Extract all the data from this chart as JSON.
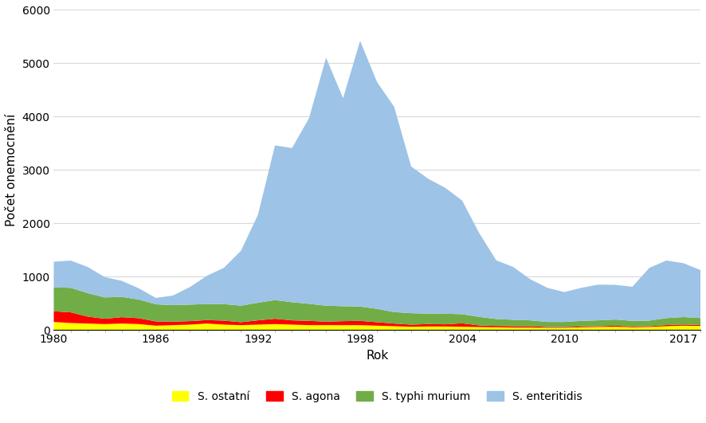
{
  "years": [
    1980,
    1981,
    1982,
    1983,
    1984,
    1985,
    1986,
    1987,
    1988,
    1989,
    1990,
    1991,
    1992,
    1993,
    1994,
    1995,
    1996,
    1997,
    1998,
    1999,
    2000,
    2001,
    2002,
    2003,
    2004,
    2005,
    2006,
    2007,
    2008,
    2009,
    2010,
    2011,
    2012,
    2013,
    2014,
    2015,
    2016,
    2017,
    2018
  ],
  "s_ostatni": [
    150,
    130,
    120,
    110,
    120,
    110,
    80,
    90,
    100,
    120,
    100,
    90,
    100,
    110,
    100,
    90,
    90,
    90,
    90,
    80,
    70,
    60,
    65,
    65,
    60,
    55,
    50,
    45,
    45,
    40,
    40,
    50,
    55,
    60,
    50,
    55,
    70,
    80,
    75
  ],
  "s_agona": [
    200,
    200,
    130,
    100,
    120,
    110,
    80,
    65,
    65,
    65,
    75,
    55,
    80,
    100,
    80,
    80,
    65,
    75,
    80,
    65,
    50,
    40,
    45,
    40,
    65,
    30,
    25,
    25,
    25,
    15,
    15,
    15,
    15,
    20,
    15,
    15,
    22,
    22,
    18
  ],
  "s_typhi_murium": [
    450,
    460,
    440,
    400,
    380,
    350,
    320,
    310,
    310,
    300,
    310,
    310,
    330,
    350,
    340,
    320,
    300,
    280,
    270,
    250,
    215,
    215,
    195,
    200,
    170,
    160,
    130,
    120,
    110,
    95,
    95,
    105,
    110,
    115,
    105,
    105,
    130,
    140,
    130
  ],
  "s_enteritidis": [
    480,
    510,
    490,
    380,
    300,
    210,
    120,
    180,
    330,
    530,
    680,
    1030,
    1650,
    2900,
    2890,
    3480,
    4650,
    3900,
    4980,
    4250,
    3850,
    2750,
    2530,
    2360,
    2130,
    1570,
    1100,
    990,
    770,
    640,
    560,
    620,
    670,
    650,
    640,
    990,
    1080,
    1010,
    900
  ],
  "colors": {
    "s_ostatni": "#ffff00",
    "s_agona": "#ff0000",
    "s_typhi_murium": "#70ad47",
    "s_enteritidis": "#9dc3e6"
  },
  "labels": {
    "s_ostatni": "S. ostatní",
    "s_agona": "S. agona",
    "s_typhi_murium": "S. typhi murium",
    "s_enteritidis": "S. enteritidis"
  },
  "xlabel": "Rok",
  "ylabel": "Počet onemocnění",
  "ylim": [
    0,
    6000
  ],
  "xlim": [
    1980,
    2018
  ],
  "yticks": [
    0,
    1000,
    2000,
    3000,
    4000,
    5000,
    6000
  ],
  "xticks": [
    1980,
    1986,
    1992,
    1998,
    2004,
    2010,
    2017
  ],
  "background_color": "#ffffff",
  "figsize": [
    8.86,
    5.31
  ],
  "dpi": 100
}
